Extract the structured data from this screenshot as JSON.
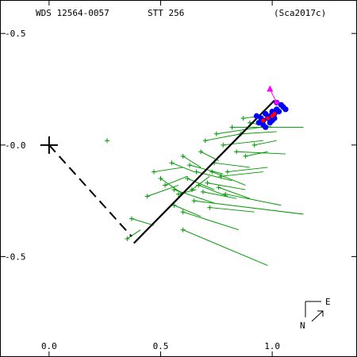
{
  "chart_data": {
    "type": "scatter",
    "title": "",
    "header": {
      "wds": "WDS 12564-0057",
      "disc": "STT 256",
      "ref": "(Sca2017c)"
    },
    "xlabel": "",
    "ylabel": "",
    "x_ticks": [
      "0.0",
      "0.5",
      "1.0"
    ],
    "y_ticks": [
      "-0.5",
      "-0.0",
      "-0.5"
    ],
    "xlim": [
      -0.22,
      1.38
    ],
    "ylim": [
      0.65,
      -0.95
    ],
    "orientation": {
      "east": "E",
      "north": "N"
    },
    "colors": {
      "observations": "#009900",
      "orbit": "#000000",
      "recent": "#0000ff",
      "predicted": "#ff0000",
      "latest": "#ff00ff"
    },
    "primary": [
      0.0,
      0.0
    ],
    "node_line": [
      [
        0.0,
        0.0
      ],
      [
        0.37,
        -0.41
      ]
    ],
    "orbit_arc": [
      [
        0.38,
        -0.44
      ],
      [
        1.01,
        0.2
      ]
    ],
    "observations": [
      [
        [
          0.26,
          0.02
        ],
        [
          0.26,
          0.02
        ]
      ],
      [
        [
          0.37,
          -0.33
        ],
        [
          0.47,
          -0.36
        ]
      ],
      [
        [
          0.35,
          -0.42
        ],
        [
          0.41,
          -0.38
        ]
      ],
      [
        [
          0.44,
          -0.23
        ],
        [
          0.58,
          -0.18
        ]
      ],
      [
        [
          0.47,
          -0.12
        ],
        [
          0.6,
          -0.1
        ]
      ],
      [
        [
          0.5,
          -0.15
        ],
        [
          0.6,
          -0.22
        ]
      ],
      [
        [
          0.52,
          -0.18
        ],
        [
          0.62,
          -0.14
        ]
      ],
      [
        [
          0.55,
          -0.08
        ],
        [
          0.65,
          -0.12
        ]
      ],
      [
        [
          0.56,
          -0.27
        ],
        [
          0.68,
          -0.32
        ]
      ],
      [
        [
          0.58,
          -0.22
        ],
        [
          0.66,
          -0.2
        ]
      ],
      [
        [
          0.6,
          -0.05
        ],
        [
          0.68,
          -0.1
        ]
      ],
      [
        [
          0.62,
          -0.15
        ],
        [
          0.74,
          -0.2
        ]
      ],
      [
        [
          0.6,
          -0.3
        ],
        [
          0.85,
          -0.38
        ]
      ],
      [
        [
          0.63,
          -0.09
        ],
        [
          0.78,
          -0.13
        ]
      ],
      [
        [
          0.65,
          -0.25
        ],
        [
          1.14,
          -0.31
        ]
      ],
      [
        [
          0.66,
          -0.12
        ],
        [
          0.82,
          -0.16
        ]
      ],
      [
        [
          0.68,
          -0.03
        ],
        [
          0.76,
          -0.07
        ]
      ],
      [
        [
          0.69,
          -0.21
        ],
        [
          0.84,
          -0.24
        ]
      ],
      [
        [
          0.7,
          0.02
        ],
        [
          0.86,
          0.05
        ]
      ],
      [
        [
          0.71,
          -0.17
        ],
        [
          0.88,
          -0.2
        ]
      ],
      [
        [
          0.72,
          -0.28
        ],
        [
          0.92,
          -0.3
        ]
      ],
      [
        [
          0.74,
          -0.08
        ],
        [
          0.9,
          -0.1
        ]
      ],
      [
        [
          0.75,
          0.05
        ],
        [
          0.95,
          0.08
        ]
      ],
      [
        [
          0.76,
          -0.19
        ],
        [
          0.9,
          -0.24
        ]
      ],
      [
        [
          0.78,
          0.0
        ],
        [
          0.96,
          0.02
        ]
      ],
      [
        [
          0.8,
          -0.12
        ],
        [
          0.98,
          -0.1
        ]
      ],
      [
        [
          0.82,
          0.08
        ],
        [
          1.14,
          0.08
        ]
      ],
      [
        [
          0.84,
          -0.03
        ],
        [
          1.06,
          -0.04
        ]
      ],
      [
        [
          0.6,
          -0.38
        ],
        [
          0.98,
          -0.54
        ]
      ],
      [
        [
          0.56,
          -0.2
        ],
        [
          0.74,
          -0.26
        ]
      ],
      [
        [
          0.73,
          -0.12
        ],
        [
          0.88,
          -0.18
        ]
      ],
      [
        [
          0.86,
          0.05
        ],
        [
          1.02,
          0.06
        ]
      ],
      [
        [
          0.79,
          -0.22
        ],
        [
          1.04,
          -0.27
        ]
      ],
      [
        [
          0.67,
          -0.18
        ],
        [
          0.8,
          -0.23
        ]
      ],
      [
        [
          0.88,
          -0.05
        ],
        [
          0.98,
          -0.03
        ]
      ],
      [
        [
          0.9,
          0.1
        ],
        [
          1.0,
          0.08
        ]
      ],
      [
        [
          0.92,
          0.0
        ],
        [
          1.02,
          0.02
        ]
      ],
      [
        [
          0.87,
          0.12
        ],
        [
          0.95,
          0.13
        ]
      ],
      [
        [
          0.77,
          -0.14
        ],
        [
          0.96,
          -0.12
        ]
      ],
      [
        [
          0.64,
          -0.2
        ],
        [
          0.72,
          -0.14
        ]
      ]
    ],
    "recent_points": [
      [
        0.93,
        0.13
      ],
      [
        0.95,
        0.12
      ],
      [
        0.96,
        0.11
      ],
      [
        0.97,
        0.14
      ],
      [
        0.98,
        0.12
      ],
      [
        0.99,
        0.13
      ],
      [
        1.0,
        0.15
      ],
      [
        1.01,
        0.14
      ],
      [
        1.02,
        0.16
      ],
      [
        1.03,
        0.15
      ],
      [
        1.04,
        0.18
      ],
      [
        1.05,
        0.17
      ],
      [
        1.06,
        0.16
      ],
      [
        0.94,
        0.1
      ],
      [
        0.96,
        0.09
      ],
      [
        0.99,
        0.1
      ],
      [
        1.01,
        0.12
      ],
      [
        1.02,
        0.19
      ],
      [
        0.97,
        0.08
      ],
      [
        1.0,
        0.11
      ]
    ],
    "predicted_points": [
      [
        0.96,
        0.11
      ],
      [
        0.98,
        0.12
      ],
      [
        1.0,
        0.13
      ],
      [
        1.01,
        0.14
      ]
    ],
    "latest_point": [
      1.02,
      0.19
    ],
    "latest_arrow_from": [
      0.99,
      0.25
    ]
  }
}
